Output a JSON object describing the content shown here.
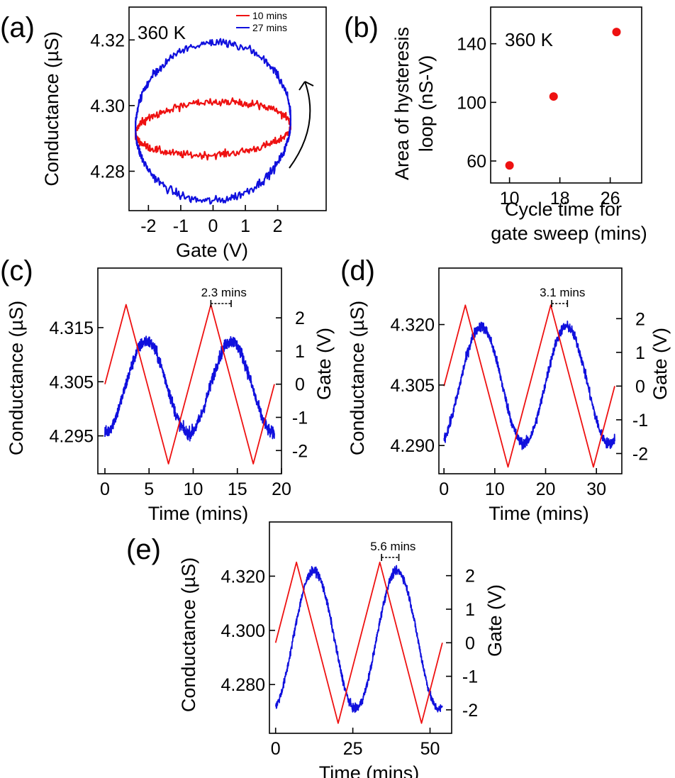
{
  "colors": {
    "blue": "#1010dd",
    "red": "#ee1111",
    "black": "#000000"
  },
  "chart_data": [
    {
      "id": "a",
      "type": "line",
      "panel_label": "(a)",
      "xlabel": "Gate (V)",
      "ylabel": "Conductance (µS)",
      "annotation": "360 K",
      "xlim": [
        -2.6,
        3.5
      ],
      "ylim": [
        4.268,
        4.33
      ],
      "xticks": [
        -2,
        -1,
        0,
        1,
        2
      ],
      "xtick_labels": [
        "-2",
        "-1",
        "0",
        "1",
        "2"
      ],
      "yticks": [
        4.28,
        4.3,
        4.32
      ],
      "ytick_labels": [
        "4.28",
        "4.30",
        "4.32"
      ],
      "legend_position": "top-right",
      "series": [
        {
          "name": "10 mins",
          "color": "#ee1111",
          "vmax": 2.4,
          "center": 4.2925,
          "upper_amp": 0.0085,
          "lower_amp": 0.0075,
          "tilt": 0.0012,
          "noise": 0.0011
        },
        {
          "name": "27 mins",
          "color": "#1010dd",
          "vmax": 2.4,
          "center": 4.2945,
          "upper_amp": 0.0245,
          "lower_amp": 0.0235,
          "tilt": 0.0012,
          "noise": 0.0013
        }
      ],
      "arrow": "counter-clockwise sweep direction"
    },
    {
      "id": "b",
      "type": "scatter",
      "panel_label": "(b)",
      "xlabel": "Cycle time for gate sweep (mins)",
      "xlabel_lines": [
        "Cycle time for",
        "gate sweep (mins)"
      ],
      "ylabel": "Area of hysteresis loop (nS-V)",
      "ylabel_lines": [
        "Area of hysteresis",
        "loop (nS-V)"
      ],
      "annotation": "360 K",
      "xlim": [
        7,
        31
      ],
      "ylim": [
        45,
        165
      ],
      "xticks": [
        10,
        18,
        26
      ],
      "xtick_labels": [
        "10",
        "18",
        "26"
      ],
      "yticks": [
        60,
        100,
        140
      ],
      "ytick_labels": [
        "60",
        "100",
        "140"
      ],
      "x": [
        10,
        17,
        27
      ],
      "y": [
        57,
        104,
        148
      ],
      "color": "#ee1111"
    },
    {
      "id": "c",
      "type": "line",
      "panel_label": "(c)",
      "xlabel": "Time (mins)",
      "ylabel": "Conductance (µS)",
      "y2label": "Gate (V)",
      "annotation": "2.3 mins",
      "xlim": [
        -0.8,
        20
      ],
      "ylim": [
        4.288,
        4.326
      ],
      "y2lim": [
        -2.7,
        3.5
      ],
      "xticks": [
        0,
        5,
        10,
        15,
        20
      ],
      "xtick_labels": [
        "0",
        "5",
        "10",
        "15",
        "20"
      ],
      "yticks": [
        4.295,
        4.305,
        4.315
      ],
      "ytick_labels": [
        "4.295",
        "4.305",
        "4.315"
      ],
      "y2ticks": [
        -2,
        -1,
        0,
        1,
        2
      ],
      "y2tick_labels": [
        "-2",
        "-1",
        "0",
        "1",
        "2"
      ],
      "gate_series": {
        "color": "#ee1111",
        "period": 9.6,
        "amp": 2.4,
        "t_end": 19.2
      },
      "conductance_series": {
        "color": "#1010dd",
        "center": 4.304,
        "amp": 0.0085,
        "lag": 2.3,
        "noise": 0.0011
      },
      "lag_marker": {
        "x_start": 12.0,
        "x_end": 14.3,
        "label": "2.3 mins"
      }
    },
    {
      "id": "d",
      "type": "line",
      "panel_label": "(d)",
      "xlabel": "Time (mins)",
      "ylabel": "Conductance (µS)",
      "y2label": "Gate (V)",
      "annotation": "3.1 mins",
      "xlim": [
        -1,
        35
      ],
      "ylim": [
        4.283,
        4.334
      ],
      "y2lim": [
        -2.6,
        3.5
      ],
      "xticks": [
        0,
        10,
        20,
        30
      ],
      "xtick_labels": [
        "0",
        "10",
        "20",
        "30"
      ],
      "yticks": [
        4.29,
        4.305,
        4.32
      ],
      "ytick_labels": [
        "4.290",
        "4.305",
        "4.320"
      ],
      "y2ticks": [
        -2,
        -1,
        0,
        1,
        2
      ],
      "y2tick_labels": [
        "-2",
        "-1",
        "0",
        "1",
        "2"
      ],
      "gate_series": {
        "color": "#ee1111",
        "period": 16.8,
        "amp": 2.4,
        "t_end": 33.6
      },
      "conductance_series": {
        "color": "#1010dd",
        "center": 4.305,
        "amp": 0.0145,
        "lag": 3.1,
        "noise": 0.0012
      },
      "lag_marker": {
        "x_start": 21.2,
        "x_end": 24.3,
        "label": "3.1 mins"
      }
    },
    {
      "id": "e",
      "type": "line",
      "panel_label": "(e)",
      "xlabel": "Time (mins)",
      "ylabel": "Conductance (µS)",
      "y2label": "Gate (V)",
      "annotation": "5.6 mins",
      "xlim": [
        -2,
        57
      ],
      "ylim": [
        4.262,
        4.34
      ],
      "y2lim": [
        -2.7,
        3.6
      ],
      "xticks": [
        0,
        25,
        50
      ],
      "xtick_labels": [
        "0",
        "25",
        "50"
      ],
      "yticks": [
        4.28,
        4.3,
        4.32
      ],
      "ytick_labels": [
        "4.280",
        "4.300",
        "4.320"
      ],
      "y2ticks": [
        -2,
        -1,
        0,
        1,
        2
      ],
      "y2tick_labels": [
        "-2",
        "-1",
        "0",
        "1",
        "2"
      ],
      "gate_series": {
        "color": "#ee1111",
        "period": 27.0,
        "amp": 2.4,
        "t_end": 54.0
      },
      "conductance_series": {
        "color": "#1010dd",
        "center": 4.2965,
        "amp": 0.0255,
        "lag": 5.6,
        "noise": 0.0014
      },
      "lag_marker": {
        "x_start": 34.3,
        "x_end": 39.9,
        "label": "5.6 mins"
      }
    }
  ]
}
